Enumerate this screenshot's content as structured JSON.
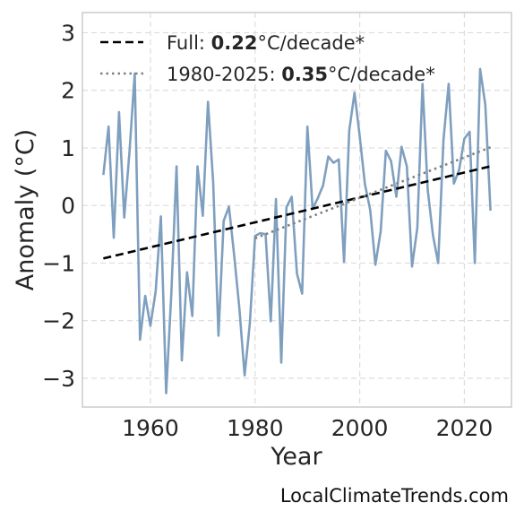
{
  "chart_data": {
    "type": "line",
    "xlabel": "Year",
    "ylabel": "Anomaly (°C)",
    "xlim": [
      1947,
      2029
    ],
    "ylim": [
      -3.5,
      3.35
    ],
    "x_ticks": [
      1960,
      1980,
      2000,
      2020
    ],
    "y_ticks": [
      3,
      2,
      1,
      0,
      -1,
      -2,
      -3
    ],
    "y_tick_labels": [
      "3",
      "2",
      "1",
      "0",
      "−1",
      "−2",
      "−3"
    ],
    "grid": true,
    "legend_position": "top-left",
    "series": [
      {
        "color": "#7f9fbf",
        "x": [
          1951,
          1952,
          1953,
          1954,
          1955,
          1956,
          1957,
          1958,
          1959,
          1960,
          1961,
          1962,
          1963,
          1964,
          1965,
          1966,
          1967,
          1968,
          1969,
          1970,
          1971,
          1972,
          1973,
          1974,
          1975,
          1976,
          1977,
          1978,
          1979,
          1980,
          1981,
          1982,
          1983,
          1984,
          1985,
          1986,
          1987,
          1988,
          1989,
          1990,
          1991,
          1992,
          1993,
          1994,
          1995,
          1996,
          1997,
          1998,
          1999,
          2000,
          2001,
          2002,
          2003,
          2004,
          2005,
          2006,
          2007,
          2008,
          2009,
          2010,
          2011,
          2012,
          2013,
          2014,
          2015,
          2016,
          2017,
          2018,
          2019,
          2020,
          2021,
          2022,
          2023,
          2024,
          2025
        ],
        "values": [
          0.53,
          1.37,
          -0.56,
          1.62,
          -0.21,
          0.94,
          2.29,
          -2.33,
          -1.57,
          -2.09,
          -1.49,
          -0.19,
          -3.26,
          -1.52,
          0.68,
          -2.69,
          -1.16,
          -1.92,
          0.68,
          -0.18,
          1.8,
          0.4,
          -2.26,
          -0.27,
          -0.02,
          -0.86,
          -1.78,
          -2.95,
          -2.05,
          -0.53,
          -0.48,
          -0.5,
          -2.01,
          0.11,
          -2.73,
          -0.03,
          0.15,
          -1.18,
          -1.53,
          1.37,
          -0.06,
          0.13,
          0.35,
          0.85,
          0.74,
          0.8,
          -0.98,
          1.3,
          1.96,
          1.2,
          0.37,
          -0.08,
          -1.03,
          -0.45,
          0.95,
          0.77,
          0.15,
          1.02,
          0.68,
          -1.06,
          -0.39,
          2.11,
          0.27,
          -0.52,
          -1.0,
          1.14,
          2.11,
          0.38,
          0.62,
          1.16,
          1.28,
          -1.0,
          2.37,
          1.75,
          -0.09
        ]
      }
    ],
    "trend_lines": [
      {
        "label_prefix": "Full: ",
        "label_value": "0.22",
        "label_suffix": "°C/decade*",
        "color": "#000000",
        "style": "dashed",
        "x": [
          1951,
          2025
        ],
        "values": [
          -0.92,
          0.68
        ]
      },
      {
        "label_prefix": "1980-2025: ",
        "label_value": "0.35",
        "label_suffix": "°C/decade*",
        "color": "#808080",
        "style": "dotted",
        "x": [
          1980,
          2025
        ],
        "values": [
          -0.57,
          1.01
        ]
      }
    ]
  },
  "credit": "LocalClimateTrends.com"
}
